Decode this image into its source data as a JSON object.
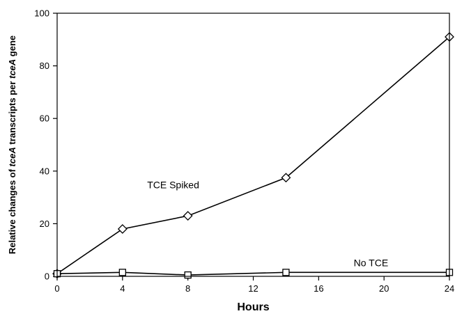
{
  "chart_data": {
    "type": "line",
    "xlabel": "Hours",
    "ylabel_parts": [
      {
        "text": "Relative changes of ",
        "italic": false
      },
      {
        "text": "tceA",
        "italic": true
      },
      {
        "text": " transcripts per ",
        "italic": false
      },
      {
        "text": "tceA",
        "italic": true
      },
      {
        "text": " gene",
        "italic": false
      }
    ],
    "xlim": [
      0,
      24
    ],
    "ylim": [
      0,
      100
    ],
    "xticks": [
      0,
      4,
      8,
      12,
      16,
      20,
      24
    ],
    "yticks": [
      0,
      20,
      40,
      60,
      80,
      100
    ],
    "grid": false,
    "series": [
      {
        "name": "TCE Spiked",
        "marker": "diamond",
        "color": "#000000",
        "x": [
          0,
          4,
          8,
          14,
          24
        ],
        "y": [
          1,
          18,
          23,
          37.5,
          91
        ]
      },
      {
        "name": "No TCE",
        "marker": "square",
        "color": "#000000",
        "x": [
          0,
          4,
          8,
          14,
          24
        ],
        "y": [
          1,
          1.5,
          0.5,
          1.5,
          1.5
        ]
      }
    ]
  }
}
